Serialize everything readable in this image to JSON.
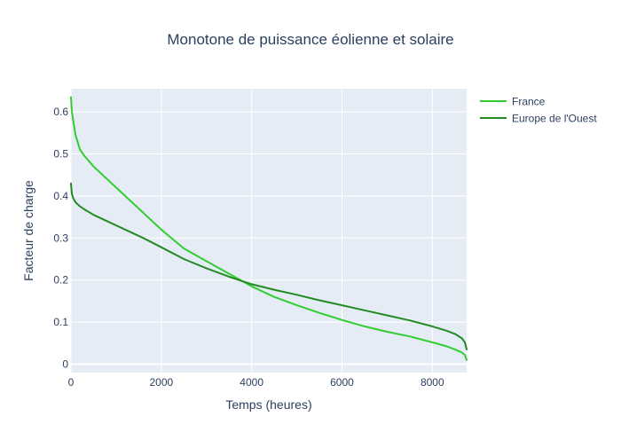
{
  "chart_data": {
    "type": "line",
    "title": "Monotone de puissance éolienne et solaire",
    "xlabel": "Temps (heures)",
    "ylabel": "Facteur de charge",
    "xlim": [
      0,
      8760
    ],
    "ylim": [
      -0.02,
      0.655
    ],
    "xticks": [
      0,
      2000,
      4000,
      6000,
      8000
    ],
    "yticks": [
      0,
      0.1,
      0.2,
      0.3,
      0.4,
      0.5,
      0.6
    ],
    "grid": true,
    "legend_position": "top-right",
    "series": [
      {
        "name": "France",
        "color": "#32cd32",
        "x": [
          0,
          20,
          50,
          100,
          200,
          300,
          500,
          800,
          1200,
          1600,
          2000,
          2500,
          3000,
          3500,
          4000,
          4500,
          5000,
          5500,
          6000,
          6500,
          7000,
          7500,
          8000,
          8300,
          8500,
          8650,
          8720,
          8760
        ],
        "y": [
          0.635,
          0.6,
          0.58,
          0.545,
          0.51,
          0.495,
          0.47,
          0.44,
          0.4,
          0.36,
          0.32,
          0.275,
          0.245,
          0.215,
          0.185,
          0.16,
          0.14,
          0.122,
          0.105,
          0.09,
          0.077,
          0.066,
          0.052,
          0.043,
          0.035,
          0.028,
          0.022,
          0.01
        ]
      },
      {
        "name": "Europe de l'Ouest",
        "color": "#228b22",
        "x": [
          0,
          20,
          50,
          100,
          200,
          300,
          500,
          800,
          1200,
          1600,
          2000,
          2500,
          3000,
          3500,
          4000,
          4500,
          5000,
          5500,
          6000,
          6500,
          7000,
          7500,
          8000,
          8300,
          8500,
          8650,
          8720,
          8760
        ],
        "y": [
          0.43,
          0.405,
          0.395,
          0.385,
          0.375,
          0.368,
          0.355,
          0.34,
          0.32,
          0.3,
          0.278,
          0.25,
          0.228,
          0.208,
          0.19,
          0.177,
          0.165,
          0.152,
          0.14,
          0.128,
          0.116,
          0.104,
          0.09,
          0.08,
          0.072,
          0.062,
          0.052,
          0.035
        ]
      }
    ]
  }
}
